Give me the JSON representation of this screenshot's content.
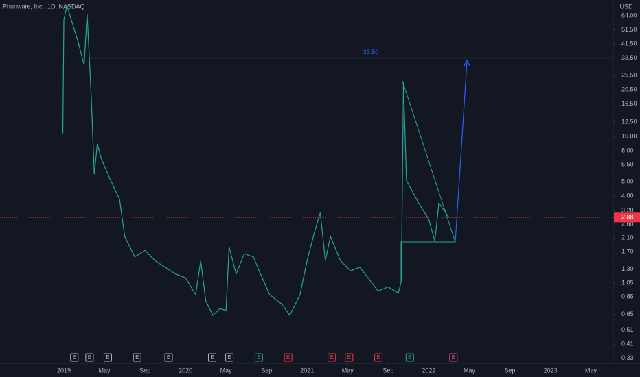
{
  "chart_data": {
    "type": "line",
    "title": "Phunware, Inc., 1D, NASDAQ",
    "currency": "USD",
    "color": "#26a69a",
    "log_scale": true,
    "x": [
      -0.1,
      0.0,
      0.3,
      1.4,
      2.0,
      2.3,
      2.7,
      3.0,
      3.3,
      3.7,
      4.5,
      5.5,
      6.0,
      7.0,
      8.0,
      9.0,
      10,
      11,
      12,
      13,
      13.5,
      14,
      14.7,
      15.4,
      16,
      16.3,
      17,
      17.8,
      18.7,
      19.4,
      20.3,
      21.5,
      22.3,
      23.3,
      24,
      24.7,
      25.3,
      25.8,
      26.3,
      27.3,
      28.3,
      29.2,
      30,
      31,
      32,
      33,
      33.3,
      33.5,
      33.8,
      35,
      36,
      36.6,
      37,
      38
    ],
    "values": [
      10.5,
      60,
      75,
      43,
      30,
      66,
      18.7,
      5.6,
      8.9,
      7.1,
      5.3,
      3.8,
      2.15,
      1.57,
      1.74,
      1.48,
      1.34,
      1.21,
      1.14,
      0.88,
      1.48,
      0.8,
      0.64,
      0.71,
      0.69,
      1.83,
      1.21,
      1.65,
      1.57,
      1.21,
      0.88,
      0.76,
      0.64,
      0.88,
      1.48,
      2.27,
      3.1,
      1.48,
      2.15,
      1.48,
      1.27,
      1.34,
      1.14,
      0.93,
      0.99,
      0.9,
      1.09,
      23,
      5.1,
      3.6,
      2.8,
      2.0,
      3.6,
      2.88
    ],
    "last_price": {
      "value": 2.88,
      "label": "2.88",
      "color": "#f23645"
    },
    "target_line": {
      "value": 33.5,
      "label": "33.50",
      "color": "#2948b8"
    },
    "xlim": [
      -6.3,
      54.2
    ],
    "xticks": [
      {
        "value": 0,
        "label": "2019"
      },
      {
        "value": 4,
        "label": "May"
      },
      {
        "value": 8,
        "label": "Sep"
      },
      {
        "value": 12,
        "label": "2020"
      },
      {
        "value": 16,
        "label": "May"
      },
      {
        "value": 20,
        "label": "Sep"
      },
      {
        "value": 24,
        "label": "2021"
      },
      {
        "value": 28,
        "label": "May"
      },
      {
        "value": 32,
        "label": "Sep"
      },
      {
        "value": 36,
        "label": "2022"
      },
      {
        "value": 40,
        "label": "May"
      },
      {
        "value": 44,
        "label": "Sep"
      },
      {
        "value": 48,
        "label": "2023"
      },
      {
        "value": 52,
        "label": "May"
      }
    ],
    "ylim": [
      0.306,
      81.6
    ],
    "yticks": [
      {
        "value": 64,
        "label": "64.00"
      },
      {
        "value": 51.5,
        "label": "51.50"
      },
      {
        "value": 41.5,
        "label": "41.50"
      },
      {
        "value": 33.5,
        "label": "33.50"
      },
      {
        "value": 25.5,
        "label": "25.50"
      },
      {
        "value": 20.5,
        "label": "20.50"
      },
      {
        "value": 16.5,
        "label": "16.50"
      },
      {
        "value": 12.5,
        "label": "12.50"
      },
      {
        "value": 10,
        "label": "10.00"
      },
      {
        "value": 8,
        "label": "8.00"
      },
      {
        "value": 6.5,
        "label": "6.50"
      },
      {
        "value": 5,
        "label": "5.00"
      },
      {
        "value": 4,
        "label": "4.00"
      },
      {
        "value": 3.2,
        "label": "3.20"
      },
      {
        "value": 2.6,
        "label": "2.60"
      },
      {
        "value": 2.1,
        "label": "2.10"
      },
      {
        "value": 1.7,
        "label": "1.70"
      },
      {
        "value": 1.3,
        "label": "1.30"
      },
      {
        "value": 1.05,
        "label": "1.05"
      },
      {
        "value": 0.85,
        "label": "0.85"
      },
      {
        "value": 0.65,
        "label": "0.65"
      },
      {
        "value": 0.51,
        "label": "0.51"
      },
      {
        "value": 0.41,
        "label": "0.41"
      },
      {
        "value": 0.33,
        "label": "0.33"
      }
    ],
    "earnings": [
      {
        "x": 1.0,
        "label": "E",
        "color": "#b2b5be"
      },
      {
        "x": 2.5,
        "label": "E",
        "color": "#b2b5be"
      },
      {
        "x": 4.3,
        "label": "E",
        "color": "#b2b5be"
      },
      {
        "x": 7.2,
        "label": "E",
        "color": "#b2b5be"
      },
      {
        "x": 10.3,
        "label": "E",
        "color": "#b2b5be"
      },
      {
        "x": 14.6,
        "label": "E",
        "color": "#b2b5be"
      },
      {
        "x": 16.3,
        "label": "E",
        "color": "#b2b5be"
      },
      {
        "x": 19.2,
        "label": "E",
        "color": "#26a69a"
      },
      {
        "x": 22.1,
        "label": "E",
        "color": "#f23645"
      },
      {
        "x": 26.4,
        "label": "E",
        "color": "#f23645"
      },
      {
        "x": 28.1,
        "label": "E",
        "color": "#f23645"
      },
      {
        "x": 31.0,
        "label": "E",
        "color": "#f23645"
      },
      {
        "x": 34.1,
        "label": "E",
        "color": "#26a69a"
      },
      {
        "x": 38.4,
        "label": "E",
        "color": "#e040a0"
      }
    ]
  }
}
